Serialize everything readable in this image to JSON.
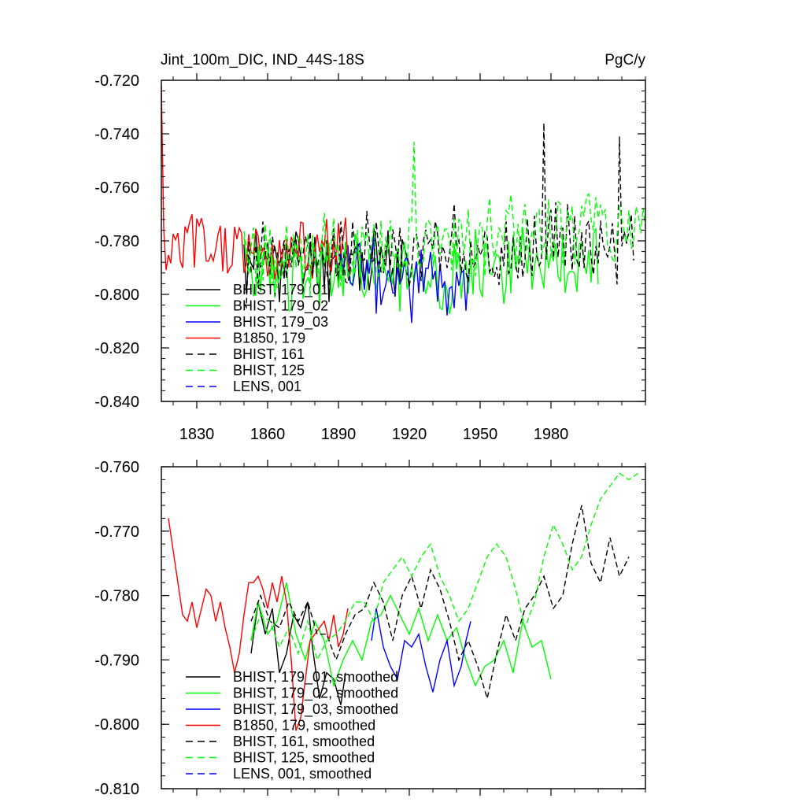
{
  "chart_data": [
    {
      "type": "line",
      "title": "Jint_100m_DIC, IND_44S-18S",
      "units": "PgC/y",
      "ylim": [
        -0.84,
        -0.72
      ],
      "xlim": [
        1815,
        2020
      ],
      "yticks": [
        "-0.720",
        "-0.740",
        "-0.760",
        "-0.780",
        "-0.800",
        "-0.820",
        "-0.840"
      ],
      "ytick_values": [
        -0.72,
        -0.74,
        -0.76,
        -0.78,
        -0.8,
        -0.82,
        -0.84
      ],
      "xticks": [
        "1830",
        "1860",
        "1890",
        "1920",
        "1950",
        "1980"
      ],
      "xtick_values": [
        1830,
        1860,
        1890,
        1920,
        1950,
        1980
      ],
      "legend_position": "lower-left",
      "series": [
        {
          "name": "BHIST, 179_01",
          "color": "#000000",
          "dash": "solid",
          "x0": 1850,
          "x1": 1920,
          "mean": -0.788,
          "amp": 0.011,
          "seed": 11,
          "trend": 0
        },
        {
          "name": "BHIST, 179_02",
          "color": "#00ff00",
          "dash": "solid",
          "x0": 1850,
          "x1": 2000,
          "mean": -0.793,
          "amp": 0.012,
          "seed": 23,
          "trend": 0.004
        },
        {
          "name": "BHIST, 179_03",
          "color": "#0000ff",
          "dash": "solid",
          "x0": 1890,
          "x1": 1945,
          "mean": -0.794,
          "amp": 0.012,
          "seed": 37,
          "trend": 0
        },
        {
          "name": "B1850, 179",
          "color": "#ff0000",
          "dash": "solid",
          "x0": 1815,
          "x1": 1895,
          "mean": -0.783,
          "amp": 0.011,
          "seed": 5,
          "trend": 0
        },
        {
          "name": "BHIST, 161",
          "color": "#000000",
          "dash": "dashed",
          "x0": 1850,
          "x1": 2015,
          "mean": -0.787,
          "amp": 0.012,
          "seed": 71,
          "trend": 0.008
        },
        {
          "name": "BHIST, 125",
          "color": "#00ff00",
          "dash": "dashed",
          "x0": 1850,
          "x1": 2020,
          "mean": -0.786,
          "amp": 0.012,
          "seed": 97,
          "trend": 0.012
        },
        {
          "name": "LENS, 001",
          "color": "#0000ff",
          "dash": "dashed",
          "x0": null,
          "x1": null,
          "mean": null,
          "amp": 0,
          "seed": 0,
          "trend": 0
        }
      ]
    },
    {
      "type": "line",
      "title": "",
      "ylim": [
        -0.81,
        -0.76
      ],
      "xlim": [
        1815,
        2020
      ],
      "yticks": [
        "-0.760",
        "-0.770",
        "-0.780",
        "-0.790",
        "-0.800",
        "-0.810"
      ],
      "ytick_values": [
        -0.76,
        -0.77,
        -0.78,
        -0.79,
        -0.8,
        -0.81
      ],
      "xtick_values": [
        1830,
        1860,
        1890,
        1920,
        1950,
        1980
      ],
      "legend_position": "lower-left",
      "series": [
        {
          "name": "BHIST, 179_01, smoothed",
          "color": "#000000",
          "dash": "solid",
          "points": [
            [
              1853,
              -0.789
            ],
            [
              1856,
              -0.781
            ],
            [
              1859,
              -0.786
            ],
            [
              1862,
              -0.782
            ],
            [
              1865,
              -0.792
            ],
            [
              1868,
              -0.789
            ],
            [
              1871,
              -0.783
            ],
            [
              1874,
              -0.785
            ],
            [
              1877,
              -0.781
            ],
            [
              1879,
              -0.788
            ],
            [
              1882,
              -0.796
            ],
            [
              1885,
              -0.792
            ],
            [
              1888,
              -0.793
            ],
            [
              1891,
              -0.797
            ],
            [
              1893,
              -0.792
            ]
          ]
        },
        {
          "name": "BHIST, 179_02, smoothed",
          "color": "#00ff00",
          "dash": "solid",
          "points": [
            [
              1853,
              -0.787
            ],
            [
              1856,
              -0.781
            ],
            [
              1860,
              -0.786
            ],
            [
              1864,
              -0.784
            ],
            [
              1868,
              -0.778
            ],
            [
              1872,
              -0.786
            ],
            [
              1876,
              -0.79
            ],
            [
              1880,
              -0.784
            ],
            [
              1884,
              -0.787
            ],
            [
              1888,
              -0.794
            ],
            [
              1892,
              -0.79
            ],
            [
              1896,
              -0.787
            ],
            [
              1900,
              -0.79
            ],
            [
              1904,
              -0.784
            ],
            [
              1908,
              -0.783
            ],
            [
              1912,
              -0.78
            ],
            [
              1916,
              -0.783
            ],
            [
              1920,
              -0.786
            ],
            [
              1924,
              -0.782
            ],
            [
              1928,
              -0.787
            ],
            [
              1932,
              -0.783
            ],
            [
              1936,
              -0.787
            ],
            [
              1940,
              -0.785
            ],
            [
              1944,
              -0.79
            ],
            [
              1948,
              -0.794
            ],
            [
              1952,
              -0.791
            ],
            [
              1956,
              -0.79
            ],
            [
              1960,
              -0.787
            ],
            [
              1964,
              -0.792
            ],
            [
              1968,
              -0.784
            ],
            [
              1972,
              -0.788
            ],
            [
              1976,
              -0.787
            ],
            [
              1980,
              -0.793
            ]
          ]
        },
        {
          "name": "BHIST, 179_03, smoothed",
          "color": "#0000ff",
          "dash": "solid",
          "points": [
            [
              1904,
              -0.787
            ],
            [
              1906,
              -0.782
            ],
            [
              1909,
              -0.788
            ],
            [
              1912,
              -0.791
            ],
            [
              1915,
              -0.793
            ],
            [
              1918,
              -0.787
            ],
            [
              1921,
              -0.788
            ],
            [
              1924,
              -0.786
            ],
            [
              1927,
              -0.791
            ],
            [
              1930,
              -0.795
            ],
            [
              1933,
              -0.79
            ],
            [
              1936,
              -0.787
            ],
            [
              1939,
              -0.794
            ],
            [
              1942,
              -0.791
            ],
            [
              1944,
              -0.787
            ],
            [
              1946,
              -0.784
            ]
          ]
        },
        {
          "name": "B1850, 179, smoothed",
          "color": "#ff0000",
          "dash": "solid",
          "points": [
            [
              1818,
              -0.768
            ],
            [
              1820,
              -0.773
            ],
            [
              1822,
              -0.778
            ],
            [
              1824,
              -0.783
            ],
            [
              1826,
              -0.784
            ],
            [
              1828,
              -0.781
            ],
            [
              1830,
              -0.785
            ],
            [
              1832,
              -0.782
            ],
            [
              1834,
              -0.779
            ],
            [
              1836,
              -0.78
            ],
            [
              1838,
              -0.784
            ],
            [
              1840,
              -0.781
            ],
            [
              1842,
              -0.785
            ],
            [
              1844,
              -0.788
            ],
            [
              1846,
              -0.792
            ],
            [
              1848,
              -0.789
            ],
            [
              1850,
              -0.783
            ],
            [
              1852,
              -0.778
            ],
            [
              1854,
              -0.778
            ],
            [
              1856,
              -0.777
            ],
            [
              1858,
              -0.779
            ],
            [
              1860,
              -0.782
            ],
            [
              1862,
              -0.778
            ],
            [
              1864,
              -0.781
            ],
            [
              1866,
              -0.777
            ],
            [
              1868,
              -0.781
            ],
            [
              1870,
              -0.79
            ],
            [
              1872,
              -0.801
            ],
            [
              1874,
              -0.799
            ],
            [
              1876,
              -0.793
            ],
            [
              1878,
              -0.787
            ],
            [
              1880,
              -0.786
            ],
            [
              1882,
              -0.785
            ],
            [
              1884,
              -0.784
            ],
            [
              1886,
              -0.787
            ],
            [
              1888,
              -0.783
            ],
            [
              1890,
              -0.788
            ],
            [
              1892,
              -0.786
            ],
            [
              1894,
              -0.782
            ]
          ]
        },
        {
          "name": "BHIST, 161, smoothed",
          "color": "#000000",
          "dash": "dashed",
          "points": [
            [
              1853,
              -0.784
            ],
            [
              1857,
              -0.78
            ],
            [
              1861,
              -0.784
            ],
            [
              1865,
              -0.785
            ],
            [
              1869,
              -0.781
            ],
            [
              1873,
              -0.784
            ],
            [
              1877,
              -0.781
            ],
            [
              1881,
              -0.786
            ],
            [
              1885,
              -0.786
            ],
            [
              1889,
              -0.79
            ],
            [
              1893,
              -0.786
            ],
            [
              1897,
              -0.783
            ],
            [
              1901,
              -0.782
            ],
            [
              1905,
              -0.778
            ],
            [
              1909,
              -0.781
            ],
            [
              1913,
              -0.787
            ],
            [
              1917,
              -0.78
            ],
            [
              1921,
              -0.777
            ],
            [
              1925,
              -0.782
            ],
            [
              1929,
              -0.776
            ],
            [
              1933,
              -0.779
            ],
            [
              1937,
              -0.784
            ],
            [
              1941,
              -0.79
            ],
            [
              1945,
              -0.787
            ],
            [
              1949,
              -0.791
            ],
            [
              1953,
              -0.796
            ],
            [
              1957,
              -0.789
            ],
            [
              1961,
              -0.783
            ],
            [
              1965,
              -0.787
            ],
            [
              1969,
              -0.782
            ],
            [
              1973,
              -0.78
            ],
            [
              1977,
              -0.777
            ],
            [
              1981,
              -0.782
            ],
            [
              1985,
              -0.78
            ],
            [
              1989,
              -0.772
            ],
            [
              1993,
              -0.766
            ],
            [
              1997,
              -0.775
            ],
            [
              2001,
              -0.778
            ],
            [
              2005,
              -0.771
            ],
            [
              2009,
              -0.777
            ],
            [
              2013,
              -0.774
            ]
          ]
        },
        {
          "name": "BHIST, 125, smoothed",
          "color": "#00ff00",
          "dash": "dashed",
          "points": [
            [
              1853,
              -0.787
            ],
            [
              1857,
              -0.783
            ],
            [
              1861,
              -0.784
            ],
            [
              1865,
              -0.788
            ],
            [
              1869,
              -0.785
            ],
            [
              1873,
              -0.789
            ],
            [
              1877,
              -0.784
            ],
            [
              1881,
              -0.79
            ],
            [
              1885,
              -0.787
            ],
            [
              1889,
              -0.786
            ],
            [
              1893,
              -0.784
            ],
            [
              1897,
              -0.781
            ],
            [
              1901,
              -0.781
            ],
            [
              1905,
              -0.784
            ],
            [
              1909,
              -0.778
            ],
            [
              1913,
              -0.776
            ],
            [
              1917,
              -0.774
            ],
            [
              1921,
              -0.777
            ],
            [
              1925,
              -0.774
            ],
            [
              1929,
              -0.772
            ],
            [
              1933,
              -0.777
            ],
            [
              1937,
              -0.78
            ],
            [
              1941,
              -0.784
            ],
            [
              1945,
              -0.782
            ],
            [
              1949,
              -0.778
            ],
            [
              1953,
              -0.774
            ],
            [
              1957,
              -0.772
            ],
            [
              1961,
              -0.774
            ],
            [
              1965,
              -0.779
            ],
            [
              1969,
              -0.785
            ],
            [
              1973,
              -0.781
            ],
            [
              1977,
              -0.774
            ],
            [
              1981,
              -0.769
            ],
            [
              1985,
              -0.772
            ],
            [
              1989,
              -0.776
            ],
            [
              1993,
              -0.774
            ],
            [
              1997,
              -0.769
            ],
            [
              2001,
              -0.765
            ],
            [
              2005,
              -0.763
            ],
            [
              2009,
              -0.761
            ],
            [
              2013,
              -0.762
            ],
            [
              2017,
              -0.761
            ]
          ]
        },
        {
          "name": "LENS, 001, smoothed",
          "color": "#0000ff",
          "dash": "dashed",
          "points": []
        }
      ]
    }
  ]
}
